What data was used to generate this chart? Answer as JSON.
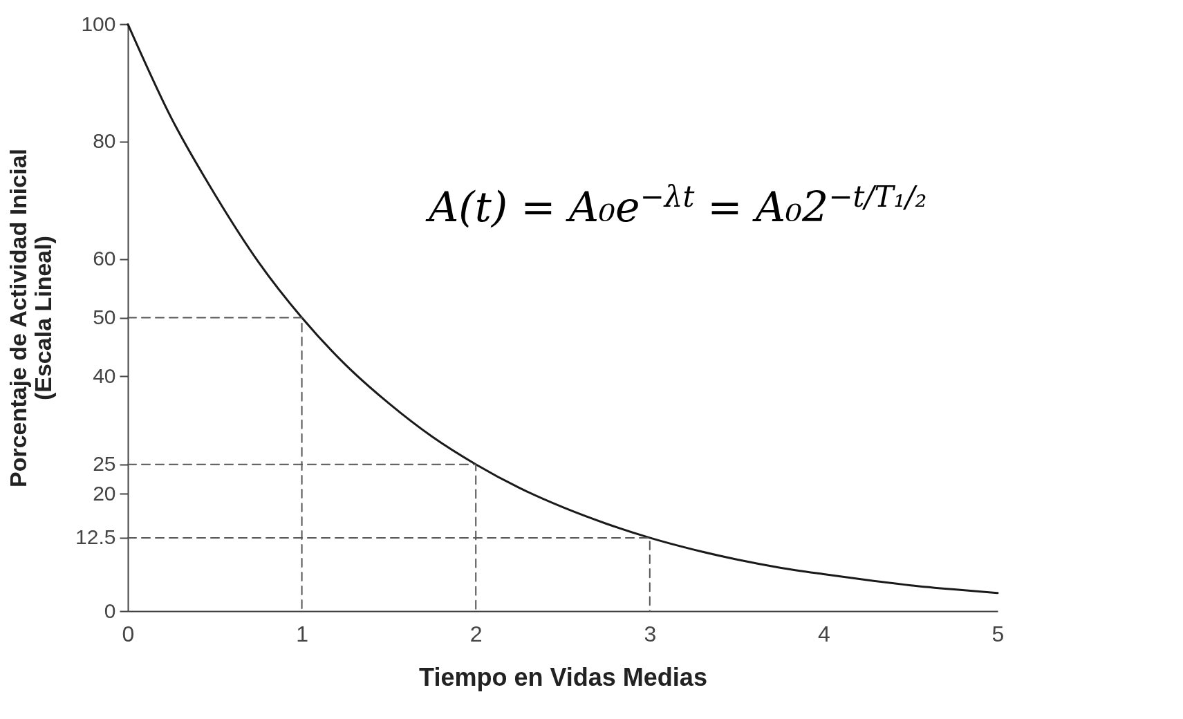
{
  "chart_data": {
    "type": "line",
    "xlabel": "Tiempo en Vidas Medias",
    "ylabel": "Porcentaje de Actividad Inicial\n(Escala Lineal)",
    "xlim": [
      0,
      5
    ],
    "xticks": [
      0,
      1,
      2,
      3,
      4,
      5
    ],
    "ylim": [
      0,
      100
    ],
    "yticks": [
      0,
      12.5,
      20,
      25,
      40,
      50,
      60,
      80,
      100
    ],
    "grid": false,
    "marker": "none",
    "series": [
      {
        "color": "#1a1a1a",
        "x": [
          0,
          0.25,
          0.5,
          0.75,
          1,
          1.25,
          1.5,
          1.75,
          2,
          2.25,
          2.5,
          2.75,
          3,
          3.25,
          3.5,
          3.75,
          4,
          4.25,
          4.5,
          4.75,
          5
        ],
        "values": [
          100,
          84,
          71,
          59.5,
          50,
          42,
          35.4,
          29.7,
          25,
          21,
          17.7,
          14.9,
          12.5,
          10.5,
          8.8,
          7.4,
          6.3,
          5.3,
          4.4,
          3.7,
          3.1
        ]
      },
      {
        "color": "#555555",
        "line_style": "dashed",
        "x": [
          0,
          1,
          1
        ],
        "values": [
          50,
          50,
          0
        ]
      },
      {
        "color": "#555555",
        "line_style": "dashed",
        "x": [
          0,
          2,
          2
        ],
        "values": [
          25,
          25,
          0
        ]
      },
      {
        "color": "#555555",
        "line_style": "dashed",
        "x": [
          0,
          3,
          3
        ],
        "values": [
          12.5,
          12.5,
          0
        ]
      }
    ],
    "annotations": [
      "A(t) = A₀e$^{−λt}$ = A₀2$^{−t/T₁/₂}$"
    ]
  }
}
